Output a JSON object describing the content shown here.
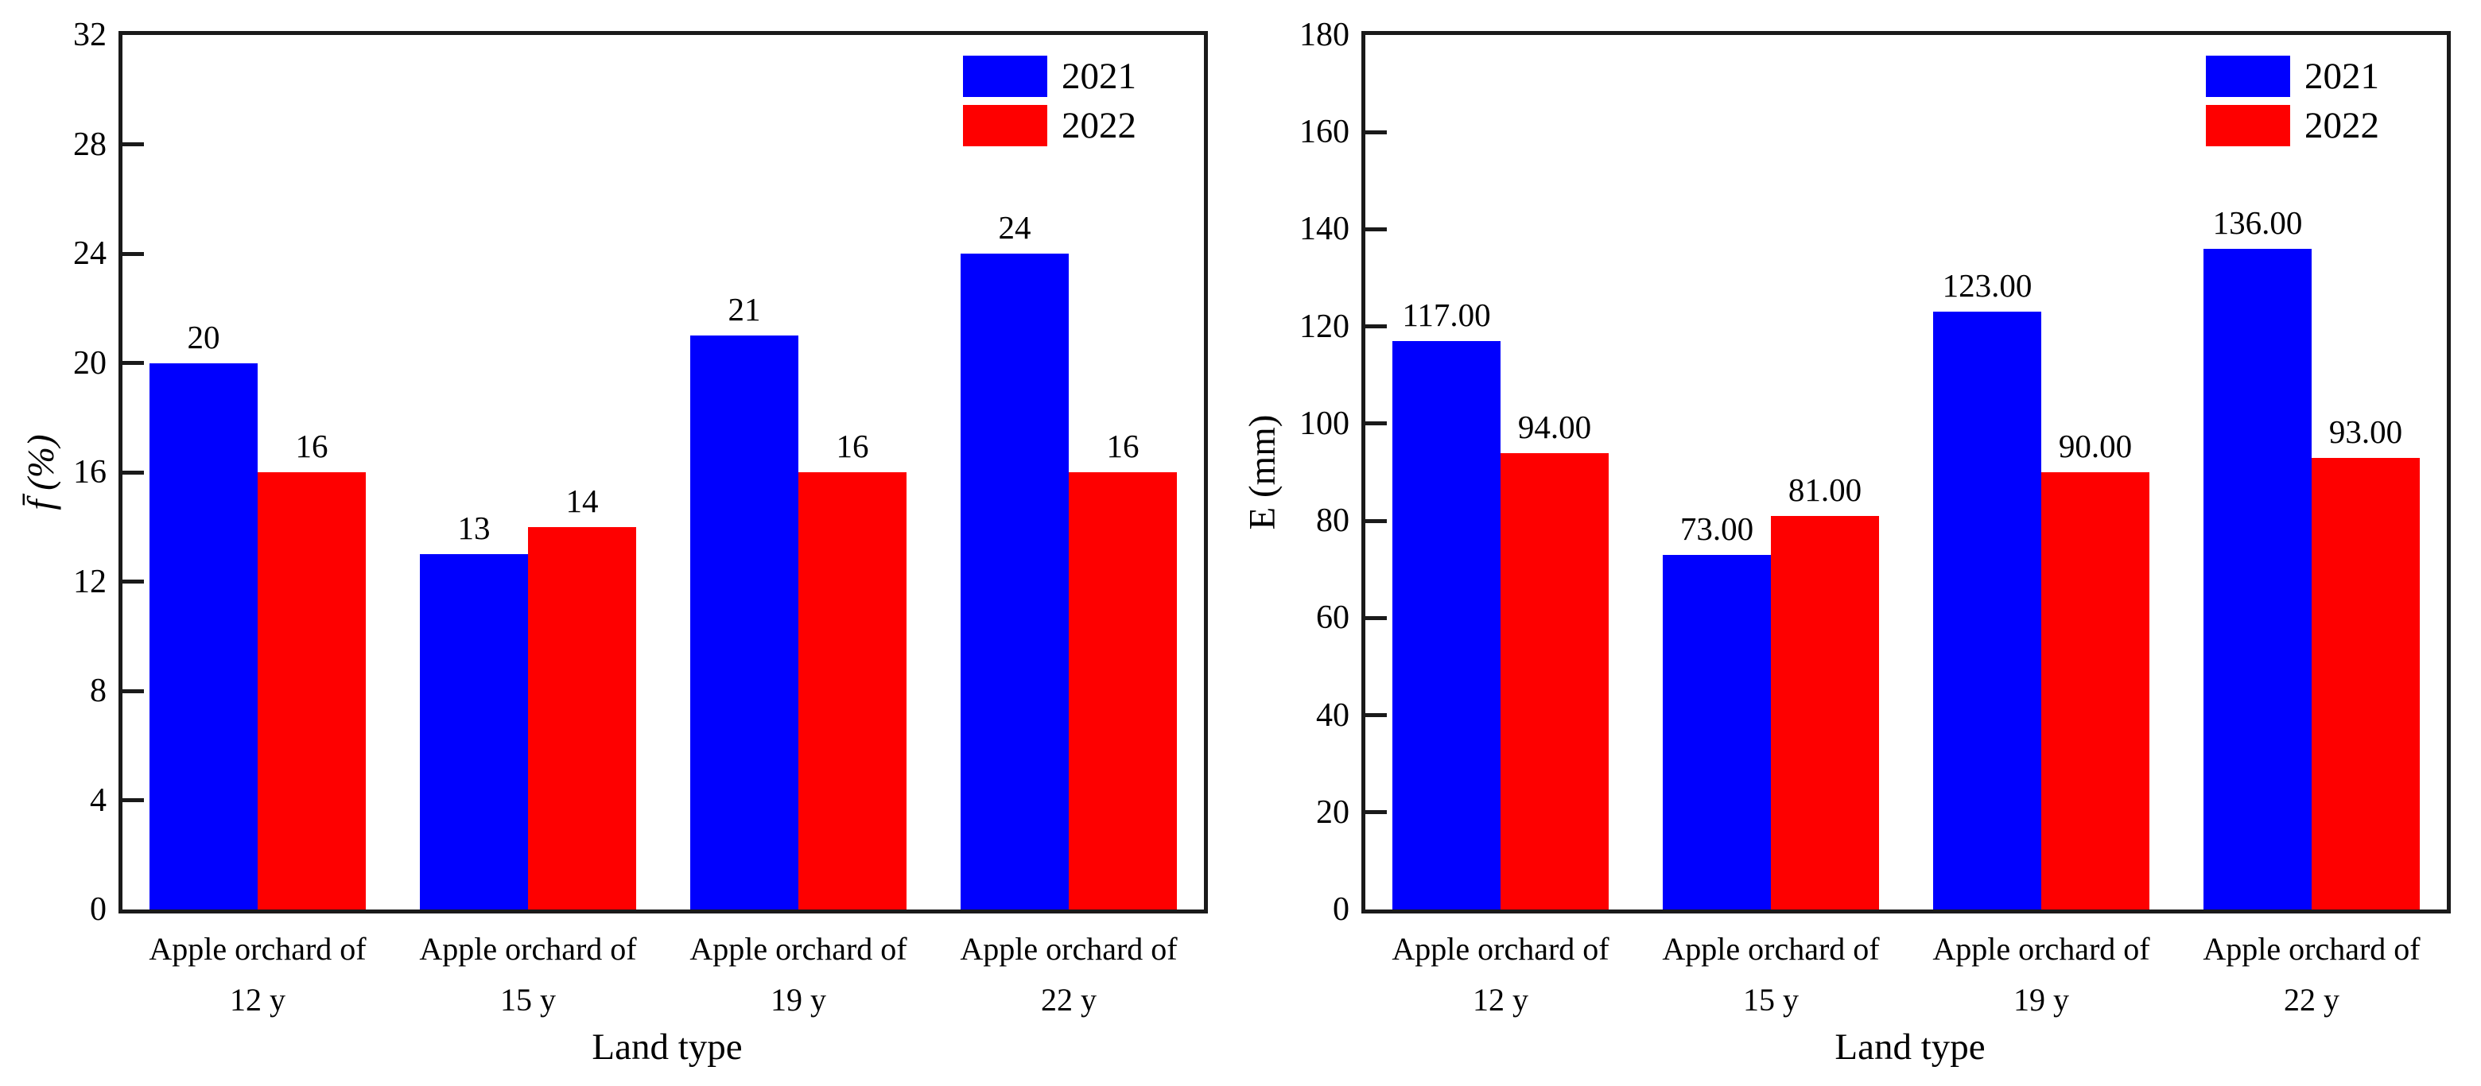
{
  "figure": {
    "background": "#ffffff",
    "axis_color": "#1a1a1a",
    "text_color": "#000000",
    "accent_blue": "#0000fe",
    "accent_red": "#fe0000"
  },
  "chart_data": [
    {
      "type": "bar",
      "title": "",
      "xlabel": "Land type",
      "ylabel": "f̄ (%)",
      "categories": [
        [
          "Apple orchard of",
          "12 y"
        ],
        [
          "Apple orchard of",
          "15 y"
        ],
        [
          "Apple orchard of",
          "19 y"
        ],
        [
          "Apple orchard of",
          "22 y"
        ]
      ],
      "series": [
        {
          "name": "2021",
          "color": "#0000fe",
          "values": [
            20,
            13,
            21,
            24
          ],
          "value_labels": [
            "20",
            "13",
            "21",
            "24"
          ]
        },
        {
          "name": "2022",
          "color": "#fe0000",
          "values": [
            16,
            14,
            16,
            16
          ],
          "value_labels": [
            "16",
            "14",
            "16",
            "16"
          ]
        }
      ],
      "ylim": [
        0,
        32
      ],
      "yticks": [
        0,
        4,
        8,
        12,
        16,
        20,
        24,
        28,
        32
      ],
      "grid": false,
      "legend_position": "top-right"
    },
    {
      "type": "bar",
      "title": "",
      "xlabel": "Land type",
      "ylabel": "E (mm)",
      "categories": [
        [
          "Apple orchard of",
          "12 y"
        ],
        [
          "Apple orchard of",
          "15 y"
        ],
        [
          "Apple orchard of",
          "19 y"
        ],
        [
          "Apple orchard of",
          "22 y"
        ]
      ],
      "series": [
        {
          "name": "2021",
          "color": "#0000fe",
          "values": [
            117,
            73,
            123,
            136
          ],
          "value_labels": [
            "117.00",
            "73.00",
            "123.00",
            "136.00"
          ]
        },
        {
          "name": "2022",
          "color": "#fe0000",
          "values": [
            94,
            81,
            90,
            93
          ],
          "value_labels": [
            "94.00",
            "81.00",
            "90.00",
            "93.00"
          ]
        }
      ],
      "ylim": [
        0,
        180
      ],
      "yticks": [
        0,
        20,
        40,
        60,
        80,
        100,
        120,
        140,
        160,
        180
      ],
      "grid": false,
      "legend_position": "top-right"
    }
  ]
}
